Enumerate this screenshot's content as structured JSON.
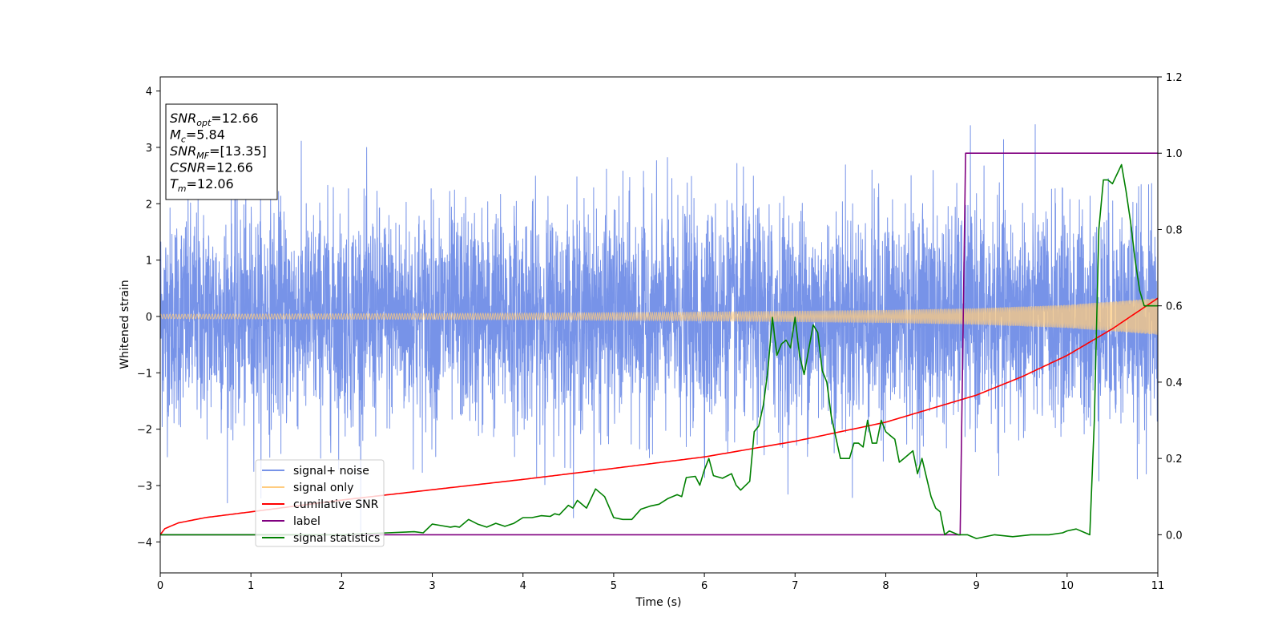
{
  "chart_data": {
    "type": "line",
    "xlabel": "Time (s)",
    "ylabel": "Whitened strain",
    "xlim": [
      0,
      11
    ],
    "ylim_left": [
      -4.55,
      4.25
    ],
    "ylim_right": [
      -0.1,
      1.2
    ],
    "x_ticks": [
      0,
      1,
      2,
      3,
      4,
      5,
      6,
      7,
      8,
      9,
      10,
      11
    ],
    "y_ticks_left": [
      -4,
      -3,
      -2,
      -1,
      0,
      1,
      2,
      3,
      4
    ],
    "y_ticks_right": [
      0.0,
      0.2,
      0.4,
      0.6,
      0.8,
      1.0,
      1.2
    ],
    "grid": false,
    "legend_position": "lower-left",
    "annotation": [
      {
        "main": "SNR",
        "sub": "opt",
        "rest": "=12.66"
      },
      {
        "main": "M",
        "sub": "c",
        "rest": "=5.84"
      },
      {
        "main": "SNR",
        "sub": "MF",
        "rest": "=[13.35]"
      },
      {
        "main": "CSNR",
        "sub": "",
        "rest": "=12.66"
      },
      {
        "main": "T",
        "sub": "m",
        "rest": "=12.06"
      }
    ],
    "series": [
      {
        "name": "signal+ noise",
        "axis": "left",
        "color": "#7793e8",
        "kind": "noise",
        "std": 0.95,
        "max": 3.86,
        "min": -4.17,
        "x_range": [
          0,
          11
        ]
      },
      {
        "name": "signal only",
        "axis": "left",
        "color": "#ffcc80",
        "kind": "chirp",
        "amplitude_x": [
          0,
          2,
          4,
          6,
          8,
          9,
          10,
          11
        ],
        "amplitude_y": [
          0.04,
          0.05,
          0.06,
          0.08,
          0.11,
          0.14,
          0.2,
          0.32
        ]
      },
      {
        "name": "cumilative SNR",
        "axis": "right",
        "color": "#ff0000",
        "x": [
          0,
          0.05,
          0.2,
          0.5,
          1,
          2,
          3,
          4,
          5,
          6,
          7,
          8,
          9,
          9.5,
          10,
          10.5,
          11
        ],
        "y": [
          0.0,
          0.016,
          0.031,
          0.045,
          0.06,
          0.091,
          0.118,
          0.145,
          0.174,
          0.204,
          0.245,
          0.295,
          0.366,
          0.414,
          0.47,
          0.54,
          0.62
        ]
      },
      {
        "name": "label",
        "axis": "right",
        "color": "#800080",
        "x": [
          0,
          8.82,
          8.88,
          11
        ],
        "y": [
          0.0,
          0.0,
          1.0,
          1.0
        ]
      },
      {
        "name": "signal statistics",
        "axis": "right",
        "color": "#008000",
        "x": [
          0,
          1,
          2,
          2.5,
          2.8,
          2.9,
          3.0,
          3.1,
          3.2,
          3.25,
          3.3,
          3.4,
          3.5,
          3.6,
          3.7,
          3.8,
          3.9,
          4.0,
          4.1,
          4.2,
          4.3,
          4.35,
          4.4,
          4.5,
          4.55,
          4.6,
          4.7,
          4.8,
          4.9,
          5.0,
          5.1,
          5.2,
          5.3,
          5.4,
          5.5,
          5.6,
          5.65,
          5.7,
          5.75,
          5.8,
          5.9,
          5.95,
          6.0,
          6.05,
          6.1,
          6.2,
          6.3,
          6.35,
          6.4,
          6.5,
          6.55,
          6.6,
          6.65,
          6.7,
          6.75,
          6.8,
          6.85,
          6.9,
          6.95,
          7.0,
          7.05,
          7.1,
          7.2,
          7.25,
          7.3,
          7.35,
          7.4,
          7.5,
          7.6,
          7.65,
          7.7,
          7.75,
          7.8,
          7.85,
          7.9,
          7.95,
          8.0,
          8.05,
          8.1,
          8.15,
          8.2,
          8.3,
          8.35,
          8.4,
          8.5,
          8.55,
          8.6,
          8.65,
          8.7,
          8.8,
          8.9,
          9.0,
          9.2,
          9.4,
          9.6,
          9.8,
          9.95,
          10.0,
          10.1,
          10.2,
          10.25,
          10.3,
          10.35,
          10.4,
          10.45,
          10.5,
          10.6,
          10.65,
          10.7,
          10.75,
          10.8,
          10.85,
          10.9,
          10.95,
          11.0
        ],
        "y": [
          0.0,
          0.0,
          0.0,
          0.005,
          0.008,
          0.005,
          0.028,
          0.024,
          0.02,
          0.022,
          0.02,
          0.04,
          0.028,
          0.02,
          0.03,
          0.022,
          0.03,
          0.045,
          0.045,
          0.05,
          0.048,
          0.055,
          0.052,
          0.077,
          0.07,
          0.09,
          0.07,
          0.12,
          0.1,
          0.045,
          0.04,
          0.04,
          0.067,
          0.075,
          0.08,
          0.095,
          0.1,
          0.105,
          0.1,
          0.15,
          0.153,
          0.13,
          0.17,
          0.2,
          0.155,
          0.148,
          0.16,
          0.13,
          0.117,
          0.14,
          0.27,
          0.285,
          0.34,
          0.43,
          0.57,
          0.47,
          0.5,
          0.51,
          0.49,
          0.57,
          0.47,
          0.42,
          0.55,
          0.53,
          0.43,
          0.4,
          0.31,
          0.2,
          0.2,
          0.24,
          0.24,
          0.23,
          0.3,
          0.24,
          0.24,
          0.3,
          0.27,
          0.26,
          0.25,
          0.19,
          0.2,
          0.22,
          0.16,
          0.2,
          0.1,
          0.07,
          0.06,
          0.0,
          0.01,
          0.0,
          0.0,
          -0.01,
          0.0,
          -0.005,
          0.0,
          0.0,
          0.005,
          0.01,
          0.015,
          0.005,
          0.0,
          0.3,
          0.8,
          0.93,
          0.93,
          0.92,
          0.97,
          0.9,
          0.82,
          0.72,
          0.64,
          0.6,
          0.6,
          0.6,
          0.6
        ]
      }
    ]
  }
}
